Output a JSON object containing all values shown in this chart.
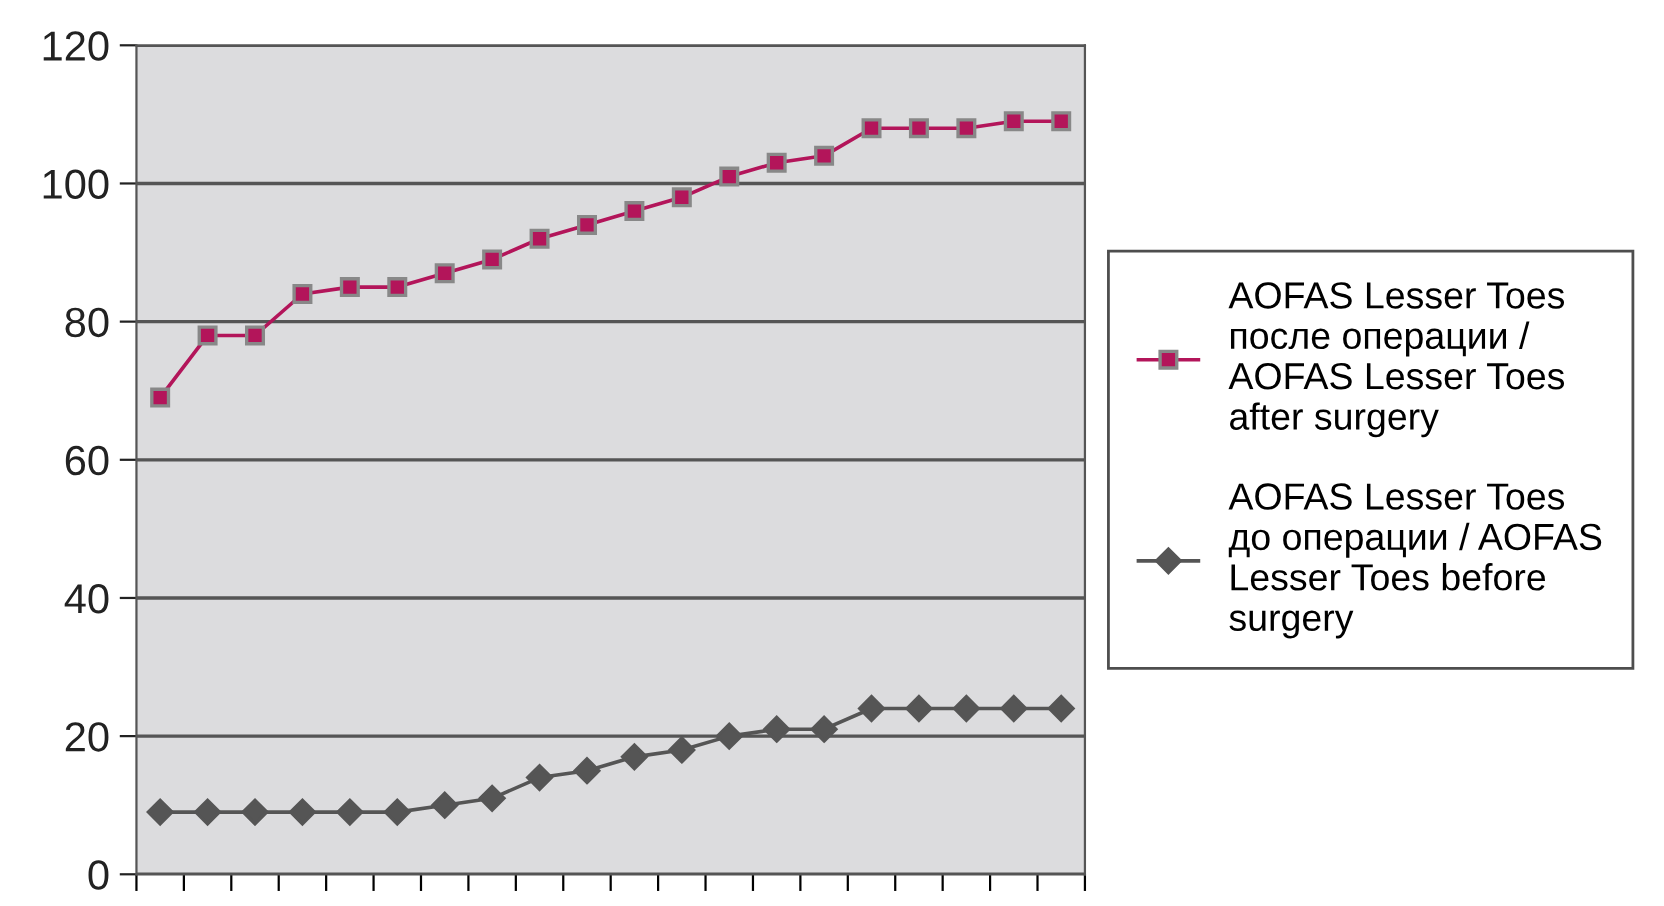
{
  "chart_data": {
    "type": "line",
    "categories": [
      null,
      null,
      null,
      null,
      null,
      null,
      null,
      null,
      null,
      null,
      null,
      null,
      null,
      null,
      null,
      null,
      null,
      null,
      null,
      null
    ],
    "series": [
      {
        "name": "AOFAS Lesser Toes\nпосле операции /\nAOFAS Lesser Toes\nafter surgery",
        "color": "#b3155a",
        "marker": "square",
        "values": [
          69,
          78,
          78,
          84,
          85,
          85,
          87,
          89,
          92,
          94,
          96,
          98,
          101,
          103,
          104,
          108,
          108,
          108,
          109,
          109
        ]
      },
      {
        "name": "AOFAS Lesser Toes\nдо операции / AOFAS\nLesser Toes before\nsurgery",
        "color": "#555555",
        "marker": "diamond",
        "values": [
          9,
          9,
          9,
          9,
          9,
          9,
          10,
          11,
          14,
          15,
          17,
          18,
          20,
          21,
          21,
          24,
          24,
          24,
          24,
          24
        ]
      }
    ],
    "ylim": [
      0,
      120
    ],
    "yticks": [
      0,
      20,
      40,
      60,
      80,
      100,
      120
    ],
    "grid": "y",
    "legend": "right",
    "line_style": "solid"
  }
}
